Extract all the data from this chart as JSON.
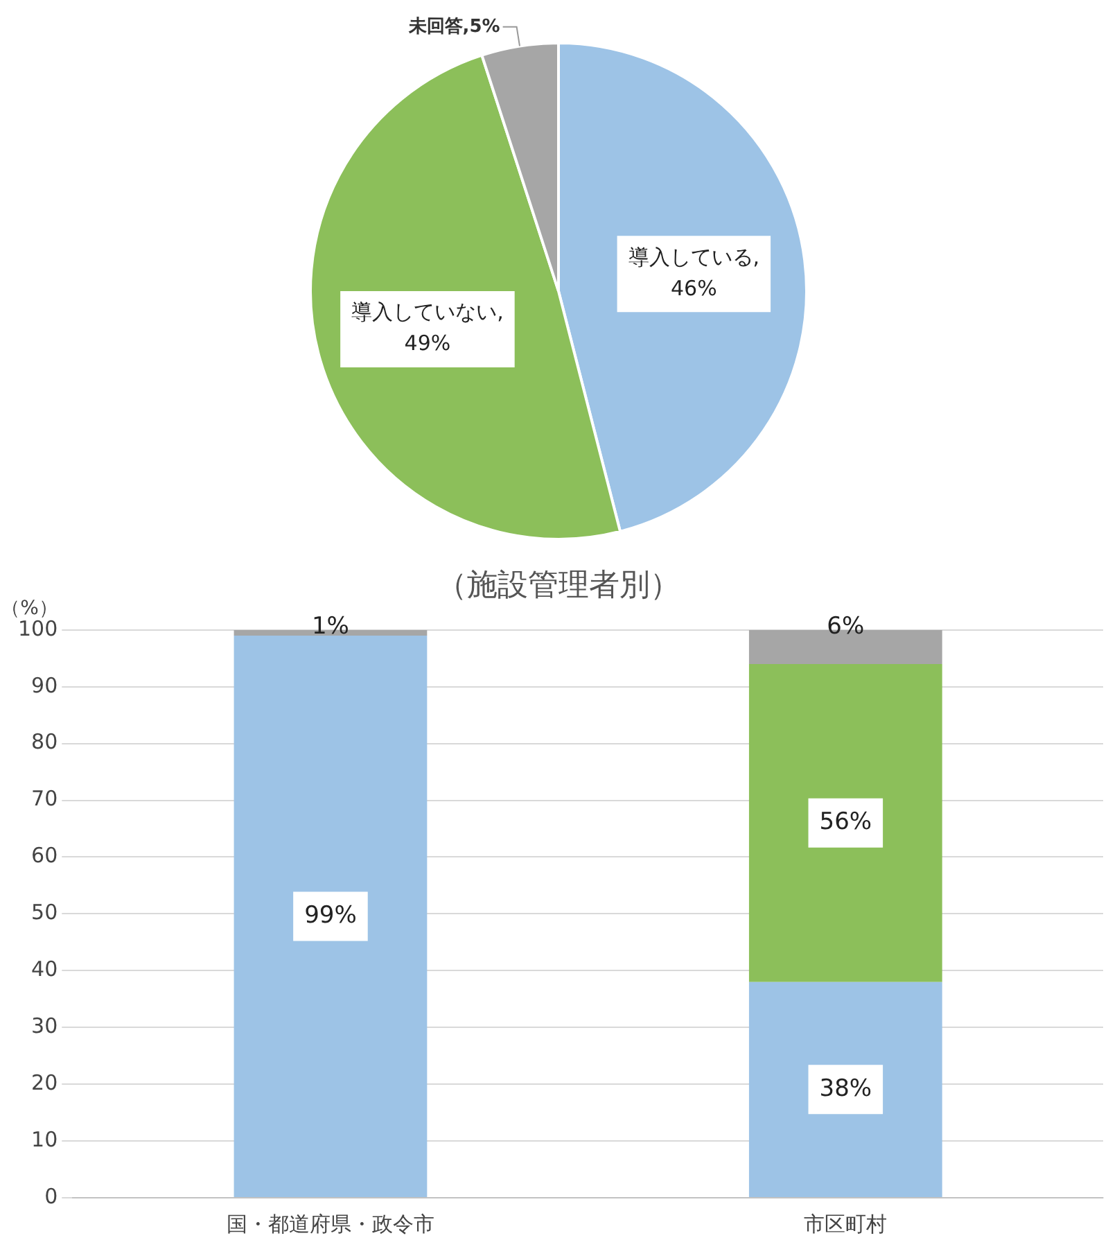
{
  "chart_data": [
    {
      "type": "pie",
      "categories": [
        "導入している",
        "導入していない",
        "未回答"
      ],
      "values": [
        46,
        49,
        5
      ],
      "colors": [
        "#9dc3e6",
        "#8cbf5a",
        "#a6a6a6"
      ],
      "value_labels": [
        ", 46%",
        ", 49%",
        ",5%"
      ],
      "legend": false
    },
    {
      "type": "bar",
      "title": "（施設管理者別）",
      "ylabel": "（%）",
      "categories": [
        "国・都道府県・政令市",
        "市区町村"
      ],
      "stacked": true,
      "series": [
        {
          "color": "#9dc3e6",
          "values": [
            99,
            38
          ],
          "value_labels": [
            "99%",
            "38%"
          ]
        },
        {
          "color": "#8cbf5a",
          "values": [
            0,
            56
          ],
          "value_labels": [
            null,
            "56%"
          ]
        },
        {
          "color": "#a6a6a6",
          "values": [
            1,
            6
          ],
          "value_labels": [
            "1%",
            "6%"
          ]
        }
      ],
      "ylim": [
        0,
        100
      ],
      "yticks": [
        0,
        10,
        20,
        30,
        40,
        50,
        60,
        70,
        80,
        90,
        100
      ],
      "grid": "y",
      "legend": false
    }
  ]
}
